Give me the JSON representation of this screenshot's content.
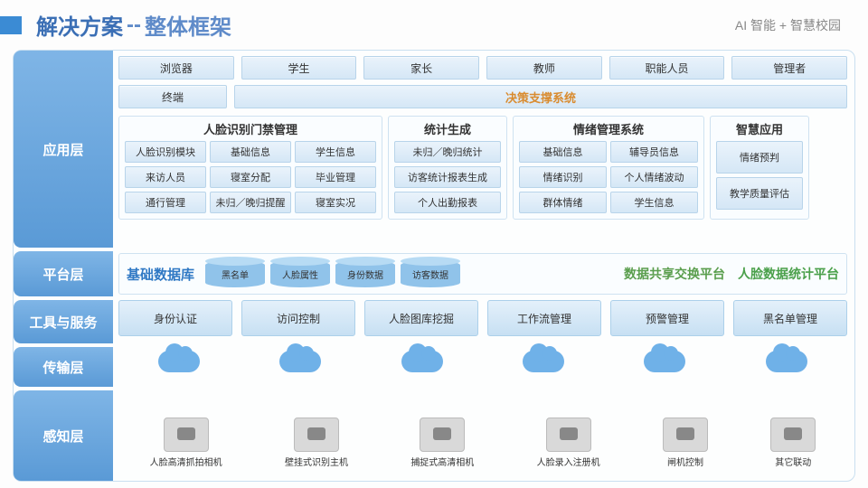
{
  "header": {
    "title_main": "解决方案",
    "title_sep": "--",
    "title_sub": "整体框架",
    "brand": "AI 智能 + 智慧校园",
    "title_color": "#3b6fb5",
    "bar_color": "#3b8bd4"
  },
  "sidebar": {
    "labels": [
      "应用层",
      "平台层",
      "工具与服务",
      "传输层",
      "感知层"
    ],
    "bg_gradient": [
      "#7fb5e6",
      "#5a9ad6"
    ],
    "text_color": "#ffffff"
  },
  "app_layer": {
    "row1": [
      "浏览器",
      "学生",
      "家长",
      "教师",
      "职能人员",
      "管理者"
    ],
    "row2_left": "终端",
    "row2_wide": "决策支撑系统",
    "row2_wide_color": "#d98b2f",
    "modules": [
      {
        "title": "人脸识别门禁管理",
        "cells": [
          "人脸识别模块",
          "基础信息",
          "学生信息",
          "来访人员",
          "寝室分配",
          "毕业管理",
          "通行管理",
          "未归／晚归提醒",
          "寝室实况"
        ]
      },
      {
        "title": "统计生成",
        "cells": [
          "未归／晚归统计",
          "访客统计报表生成",
          "个人出勤报表"
        ]
      },
      {
        "title": "情绪管理系统",
        "cells": [
          "基础信息",
          "辅导员信息",
          "情绪识别",
          "个人情绪波动",
          "群体情绪",
          "学生信息"
        ]
      },
      {
        "title": "智慧应用",
        "cells": [
          "情绪预判",
          "教学质量评估"
        ]
      }
    ]
  },
  "platform_layer": {
    "db_title": "基础数据库",
    "db_title_color": "#2f78c4",
    "cylinders": [
      "黑名单",
      "人脸属性",
      "身份数据",
      "访客数据"
    ],
    "cyl_color": "#90c3ea",
    "link1": "数据共享交换平台",
    "link1_color": "#5a9e4d",
    "link2": "人脸数据统计平台",
    "link2_color": "#4aa04a"
  },
  "tools_layer": {
    "items": [
      "身份认证",
      "访问控制",
      "人脸图库挖掘",
      "工作流管理",
      "预警管理",
      "黑名单管理"
    ]
  },
  "transport_layer": {
    "cloud_count": 6,
    "cloud_color": "#6fb1e8"
  },
  "sensing_layer": {
    "devices": [
      "人脸高清抓拍相机",
      "壁挂式识别主机",
      "捕捉式高清相机",
      "人脸录入注册机",
      "闸机控制",
      "其它联动"
    ]
  },
  "colors": {
    "frame_border": "#c9dff0",
    "btn_gradient": [
      "#eaf3fb",
      "#d5e7f6"
    ],
    "btn_border": "#b8d4ea",
    "module_border": "#cfe2f1",
    "tool_gradient": [
      "#e4f0fa",
      "#c7e0f3"
    ]
  }
}
